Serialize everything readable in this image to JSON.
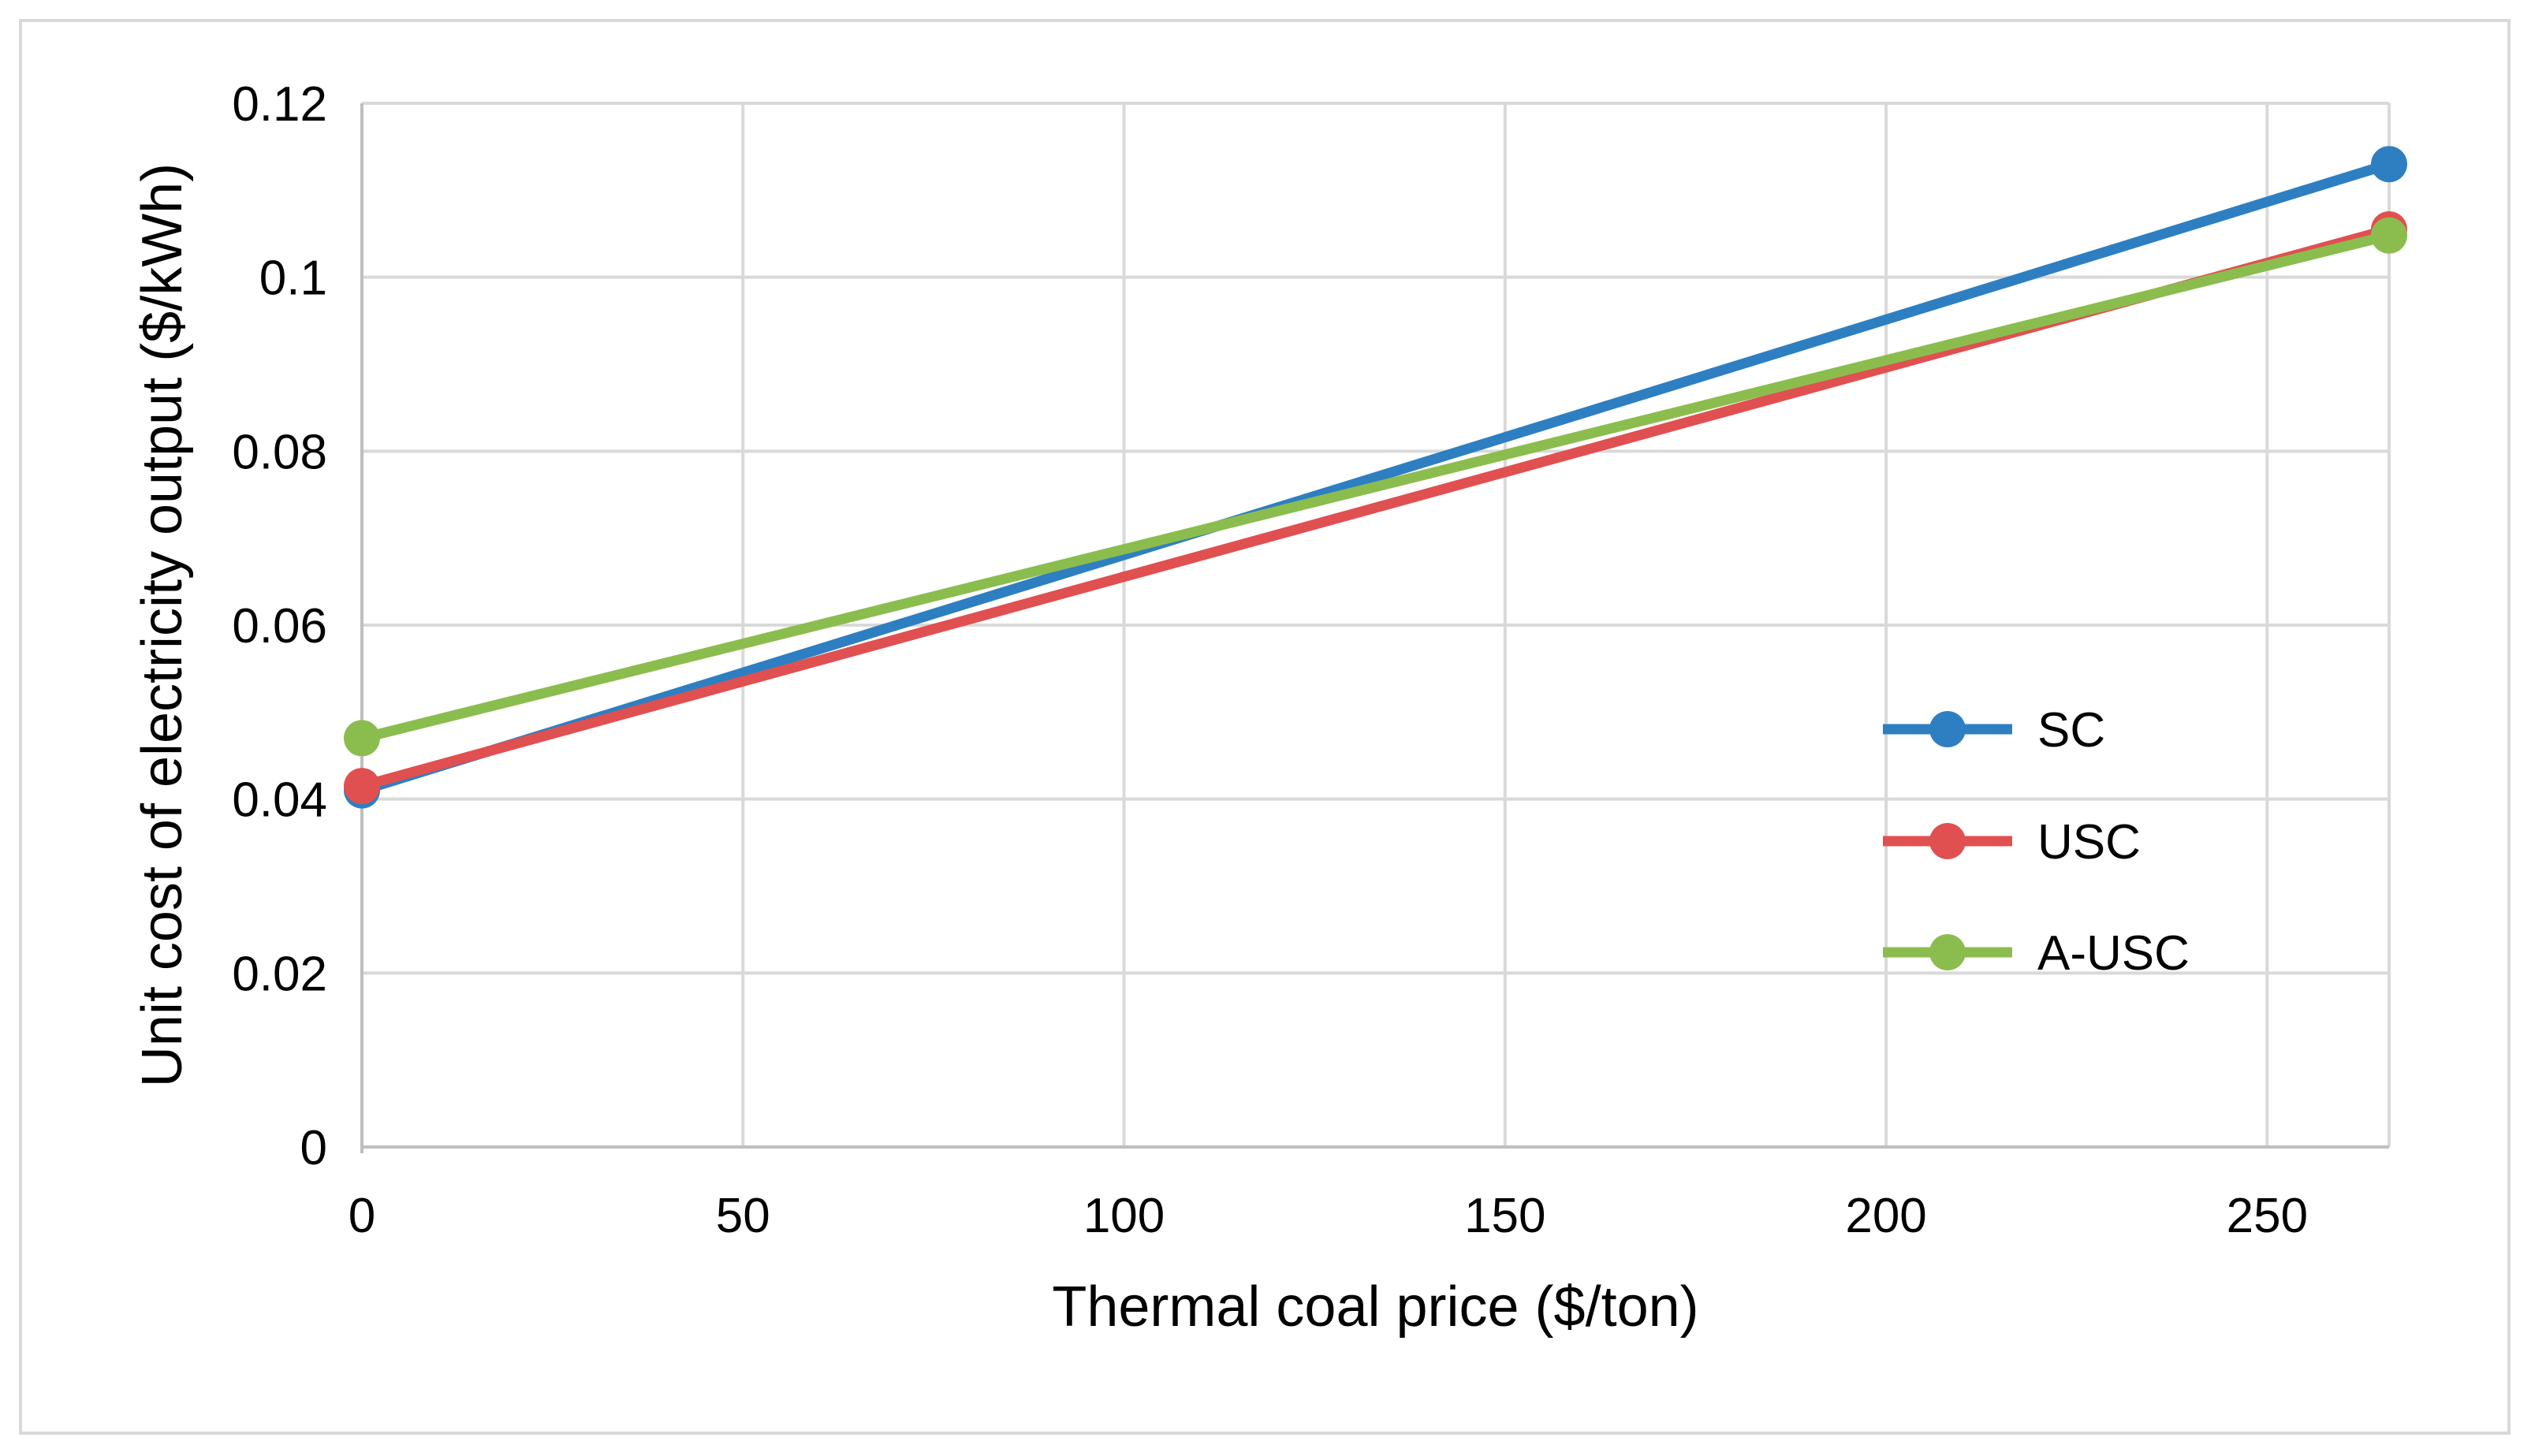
{
  "chart_data": {
    "type": "line",
    "title": "",
    "xlabel": "Thermal coal price ($/ton)",
    "ylabel": "Unit cost of electricity output ($/kWh)",
    "xlim": [
      0,
      266
    ],
    "ylim": [
      0,
      0.12
    ],
    "xticks": [
      0,
      50,
      100,
      150,
      200,
      250
    ],
    "xtick_labels": [
      "0",
      "50",
      "100",
      "150",
      "200",
      "250"
    ],
    "yticks": [
      0,
      0.02,
      0.04,
      0.06,
      0.08,
      0.1,
      0.12
    ],
    "ytick_labels": [
      "0",
      "0.02",
      "0.04",
      "0.06",
      "0.08",
      "0.1",
      "0.12"
    ],
    "grid": true,
    "legend_position": "right",
    "series": [
      {
        "name": "SC",
        "color": "#2e7fc1",
        "x": [
          0,
          266
        ],
        "y": [
          0.041,
          0.113
        ]
      },
      {
        "name": "USC",
        "color": "#e05050",
        "x": [
          0,
          266
        ],
        "y": [
          0.0415,
          0.1055
        ]
      },
      {
        "name": "A-USC",
        "color": "#8bbd4e",
        "x": [
          0,
          266
        ],
        "y": [
          0.047,
          0.1048
        ]
      }
    ]
  }
}
